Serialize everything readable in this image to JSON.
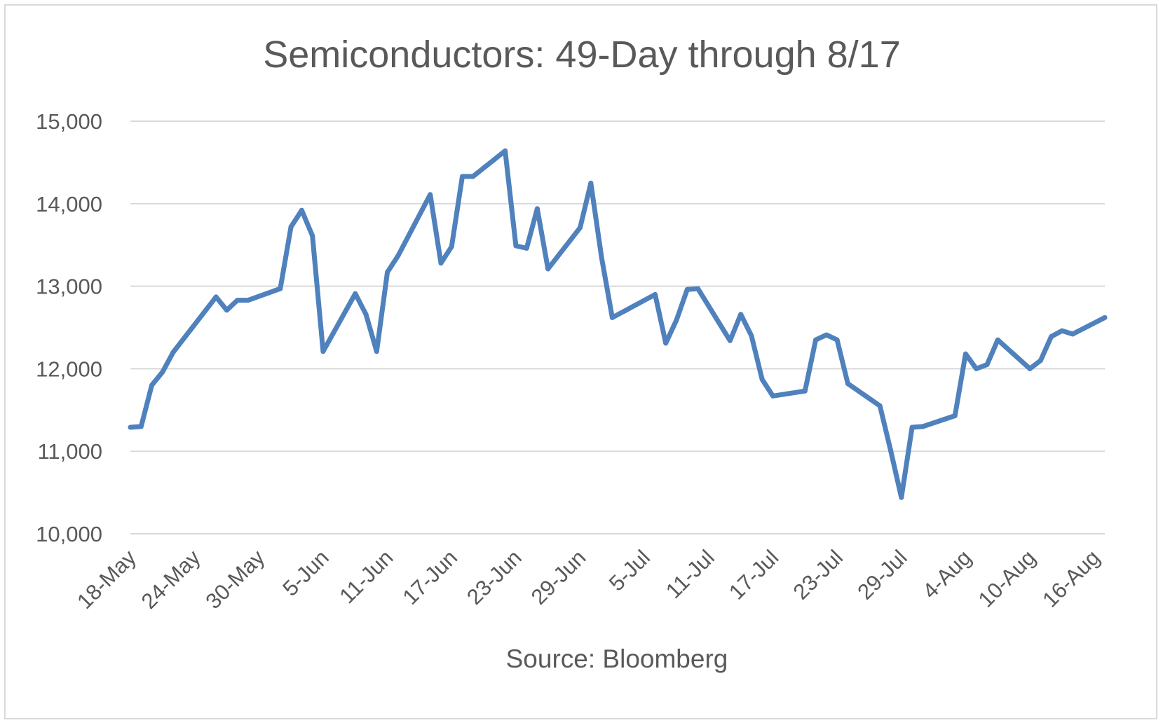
{
  "chart_data": {
    "type": "line",
    "title": "Semiconductors: 49-Day through 8/17",
    "source": "Source: Bloomberg",
    "xlabel": "",
    "ylabel": "",
    "ylim": [
      10000,
      15000
    ],
    "y_ticks": [
      10000,
      11000,
      12000,
      13000,
      14000,
      15000
    ],
    "y_tick_labels": [
      "10,000",
      "11,000",
      "12,000",
      "13,000",
      "14,000",
      "15,000"
    ],
    "x_tick_labels": [
      "18-May",
      "24-May",
      "30-May",
      "5-Jun",
      "11-Jun",
      "17-Jun",
      "23-Jun",
      "29-Jun",
      "5-Jul",
      "11-Jul",
      "17-Jul",
      "23-Jul",
      "29-Jul",
      "4-Aug",
      "10-Aug",
      "16-Aug"
    ],
    "x_range": [
      "2020-05-18",
      "2020-08-17"
    ],
    "grid": true,
    "legend": "none",
    "color": "#4F81BD",
    "series": [
      {
        "x": [
          "2020-05-18",
          "2020-05-19",
          "2020-05-20",
          "2020-05-21",
          "2020-05-22",
          "2020-05-26",
          "2020-05-27",
          "2020-05-28",
          "2020-05-29",
          "2020-06-01",
          "2020-06-02",
          "2020-06-03",
          "2020-06-04",
          "2020-06-05",
          "2020-06-08",
          "2020-06-09",
          "2020-06-10",
          "2020-06-11",
          "2020-06-12",
          "2020-06-15",
          "2020-06-16",
          "2020-06-17",
          "2020-06-18",
          "2020-06-19",
          "2020-06-22",
          "2020-06-23",
          "2020-06-24",
          "2020-06-25",
          "2020-06-26",
          "2020-06-29",
          "2020-06-30",
          "2020-07-01",
          "2020-07-02",
          "2020-07-06",
          "2020-07-07",
          "2020-07-08",
          "2020-07-09",
          "2020-07-10",
          "2020-07-13",
          "2020-07-14",
          "2020-07-15",
          "2020-07-16",
          "2020-07-17",
          "2020-07-20",
          "2020-07-21",
          "2020-07-22",
          "2020-07-23",
          "2020-07-24",
          "2020-07-27",
          "2020-07-28",
          "2020-07-29",
          "2020-07-30",
          "2020-07-31",
          "2020-08-03",
          "2020-08-04",
          "2020-08-05",
          "2020-08-06",
          "2020-08-07",
          "2020-08-10",
          "2020-08-11",
          "2020-08-12",
          "2020-08-13",
          "2020-08-14",
          "2020-08-17"
        ],
        "y": [
          11290,
          11300,
          11800,
          11960,
          12200,
          12870,
          12710,
          12830,
          12830,
          12970,
          13720,
          13920,
          13610,
          12210,
          12910,
          12660,
          12210,
          13170,
          13370,
          14110,
          13280,
          13480,
          14330,
          14330,
          14640,
          13490,
          13460,
          13940,
          13210,
          13710,
          14250,
          13350,
          12620,
          12900,
          12310,
          12590,
          12960,
          12970,
          12340,
          12660,
          12400,
          11870,
          11670,
          11730,
          12350,
          12410,
          12350,
          11820,
          11550,
          11010,
          10440,
          11290,
          11300,
          11430,
          12180,
          12000,
          12050,
          12350,
          12000,
          12100,
          12390,
          12460,
          12420,
          12620
        ]
      }
    ]
  }
}
